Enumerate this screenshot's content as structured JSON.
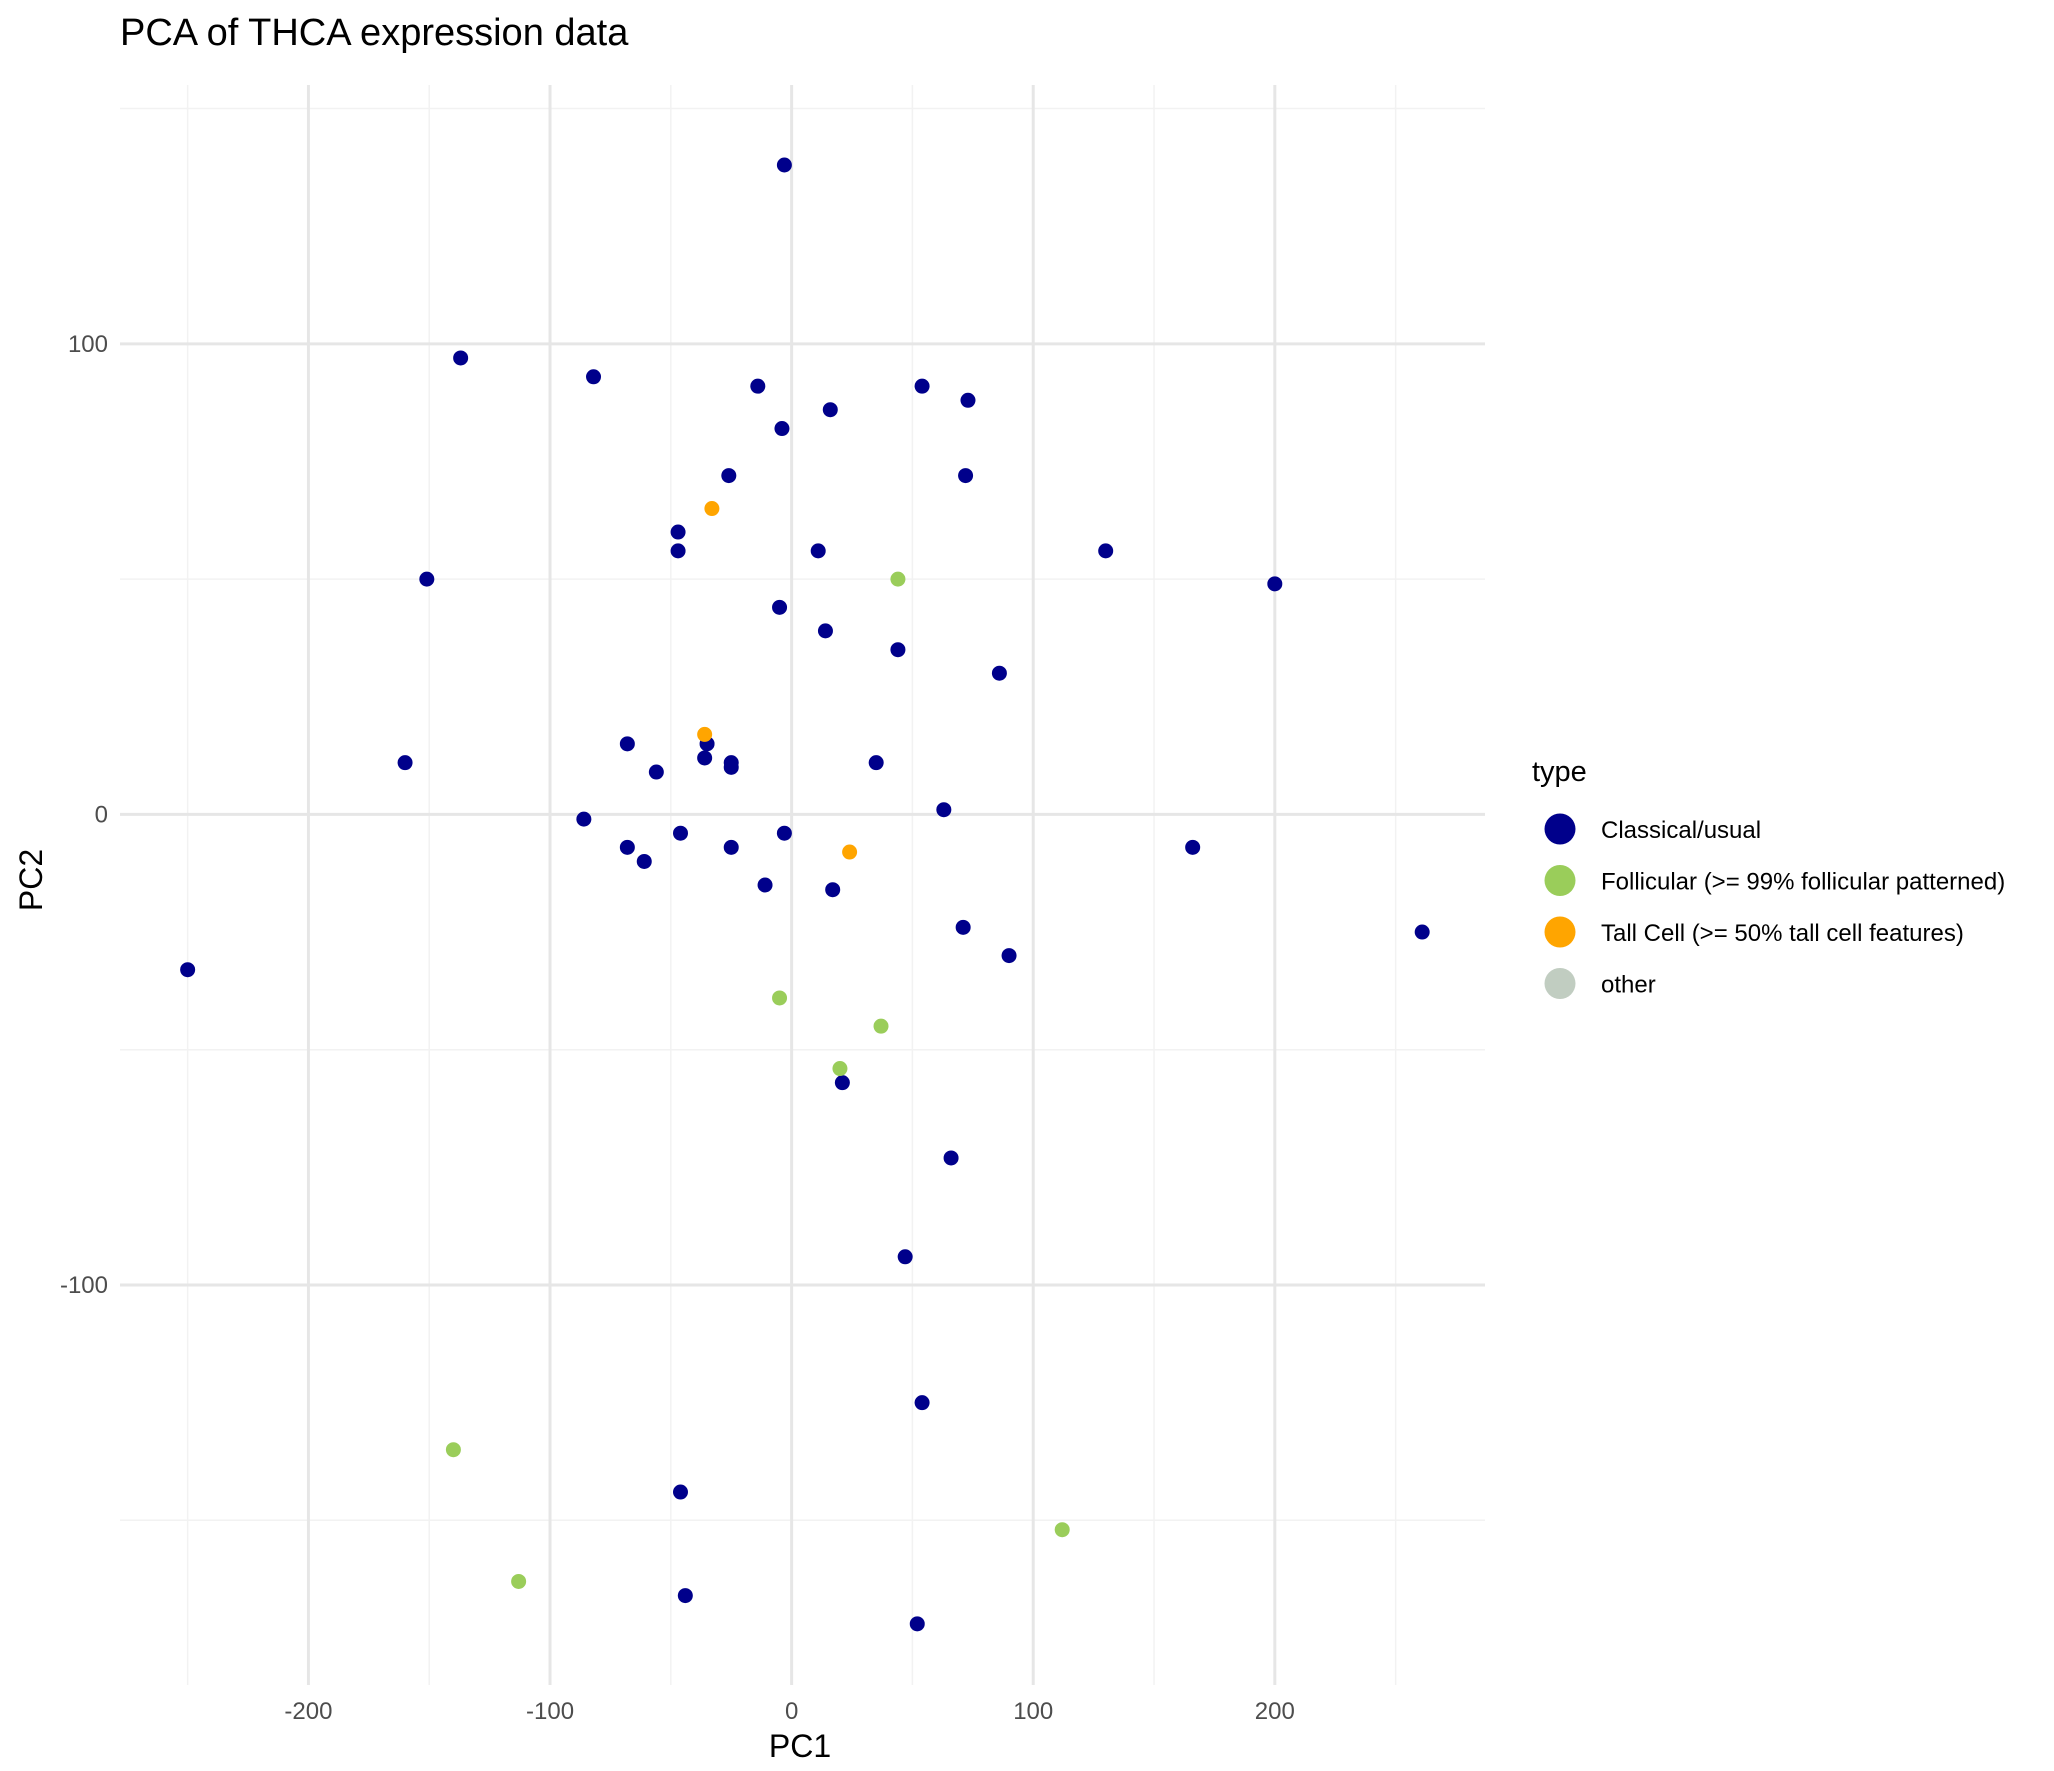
{
  "chart_data": {
    "type": "scatter",
    "title": "PCA of THCA expression data",
    "xlabel": "PC1",
    "ylabel": "PC2",
    "xlim": [
      -278,
      287
    ],
    "ylim": [
      -185,
      155
    ],
    "x_ticks": [
      -200,
      -100,
      0,
      100,
      200
    ],
    "y_ticks": [
      -100,
      0,
      100
    ],
    "grid": true,
    "legend": {
      "title": "type",
      "position": "right",
      "entries": [
        {
          "label": "Classical/usual",
          "color": "#00008B"
        },
        {
          "label": "Follicular (>= 99% follicular patterned)",
          "color": "#9ACD5A"
        },
        {
          "label": "Tall Cell (>= 50% tall cell features)",
          "color": "#FFA500"
        },
        {
          "label": "other",
          "color": "#C1CDC1"
        }
      ]
    },
    "series": [
      {
        "name": "Classical/usual",
        "color": "#00008B",
        "points": [
          [
            -3,
            138
          ],
          [
            -137,
            97
          ],
          [
            -82,
            93
          ],
          [
            -14,
            91
          ],
          [
            54,
            91
          ],
          [
            73,
            88
          ],
          [
            16,
            86
          ],
          [
            -4,
            82
          ],
          [
            -26,
            72
          ],
          [
            72,
            72
          ],
          [
            -47,
            60
          ],
          [
            -47,
            56
          ],
          [
            11,
            56
          ],
          [
            130,
            56
          ],
          [
            -151,
            50
          ],
          [
            200,
            49
          ],
          [
            -5,
            44
          ],
          [
            14,
            39
          ],
          [
            44,
            35
          ],
          [
            86,
            30
          ],
          [
            -68,
            15
          ],
          [
            -35,
            15
          ],
          [
            -36,
            12
          ],
          [
            -25,
            11
          ],
          [
            -25,
            10
          ],
          [
            -56,
            9
          ],
          [
            35,
            11
          ],
          [
            -160,
            11
          ],
          [
            63,
            1
          ],
          [
            -86,
            -1
          ],
          [
            -3,
            -4
          ],
          [
            -46,
            -4
          ],
          [
            -68,
            -7
          ],
          [
            -25,
            -7
          ],
          [
            -61,
            -10
          ],
          [
            166,
            -7
          ],
          [
            -11,
            -15
          ],
          [
            17,
            -16
          ],
          [
            71,
            -24
          ],
          [
            90,
            -30
          ],
          [
            261,
            -25
          ],
          [
            -250,
            -33
          ],
          [
            21,
            -57
          ],
          [
            66,
            -73
          ],
          [
            47,
            -94
          ],
          [
            54,
            -125
          ],
          [
            -46,
            -144
          ],
          [
            -44,
            -166
          ],
          [
            52,
            -172
          ]
        ]
      },
      {
        "name": "Follicular (>= 99% follicular patterned)",
        "color": "#9ACD5A",
        "points": [
          [
            44,
            50
          ],
          [
            -5,
            -39
          ],
          [
            37,
            -45
          ],
          [
            20,
            -54
          ],
          [
            -140,
            -135
          ],
          [
            -113,
            -163
          ],
          [
            112,
            -152
          ]
        ]
      },
      {
        "name": "Tall Cell (>= 50% tall cell features)",
        "color": "#FFA500",
        "points": [
          [
            -33,
            65
          ],
          [
            -36,
            17
          ],
          [
            24,
            -8
          ]
        ]
      }
    ]
  }
}
